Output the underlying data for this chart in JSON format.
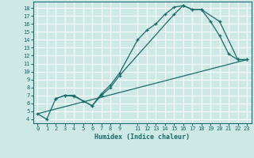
{
  "title": "",
  "xlabel": "Humidex (Indice chaleur)",
  "bg_color": "#cde8e5",
  "line_color": "#1a6b6b",
  "grid_color": "#b0d8d4",
  "xlim": [
    -0.5,
    23.5
  ],
  "ylim": [
    3.5,
    18.8
  ],
  "xticks": [
    0,
    1,
    2,
    3,
    4,
    5,
    6,
    7,
    8,
    9,
    11,
    12,
    13,
    14,
    15,
    16,
    17,
    18,
    19,
    20,
    21,
    22,
    23
  ],
  "yticks": [
    4,
    5,
    6,
    7,
    8,
    9,
    10,
    11,
    12,
    13,
    14,
    15,
    16,
    17,
    18
  ],
  "line1_x": [
    0,
    1,
    2,
    3,
    4,
    5,
    6,
    7,
    8,
    9,
    11,
    12,
    13,
    14,
    15,
    16,
    17,
    18,
    19,
    20,
    21,
    22,
    23
  ],
  "line1_y": [
    4.7,
    4.0,
    6.6,
    7.0,
    7.0,
    6.3,
    5.7,
    7.2,
    8.3,
    9.8,
    14.0,
    15.2,
    16.0,
    17.2,
    18.1,
    18.3,
    17.8,
    17.8,
    16.3,
    14.5,
    12.2,
    11.5,
    11.5
  ],
  "line2_x": [
    2,
    3,
    4,
    6,
    7,
    8,
    9,
    15,
    16,
    17,
    18,
    20,
    22,
    23
  ],
  "line2_y": [
    6.6,
    7.0,
    6.9,
    5.7,
    7.0,
    8.0,
    9.5,
    17.2,
    18.3,
    17.8,
    17.8,
    16.3,
    11.5,
    11.5
  ],
  "line3_x": [
    0,
    23
  ],
  "line3_y": [
    4.7,
    11.5
  ]
}
